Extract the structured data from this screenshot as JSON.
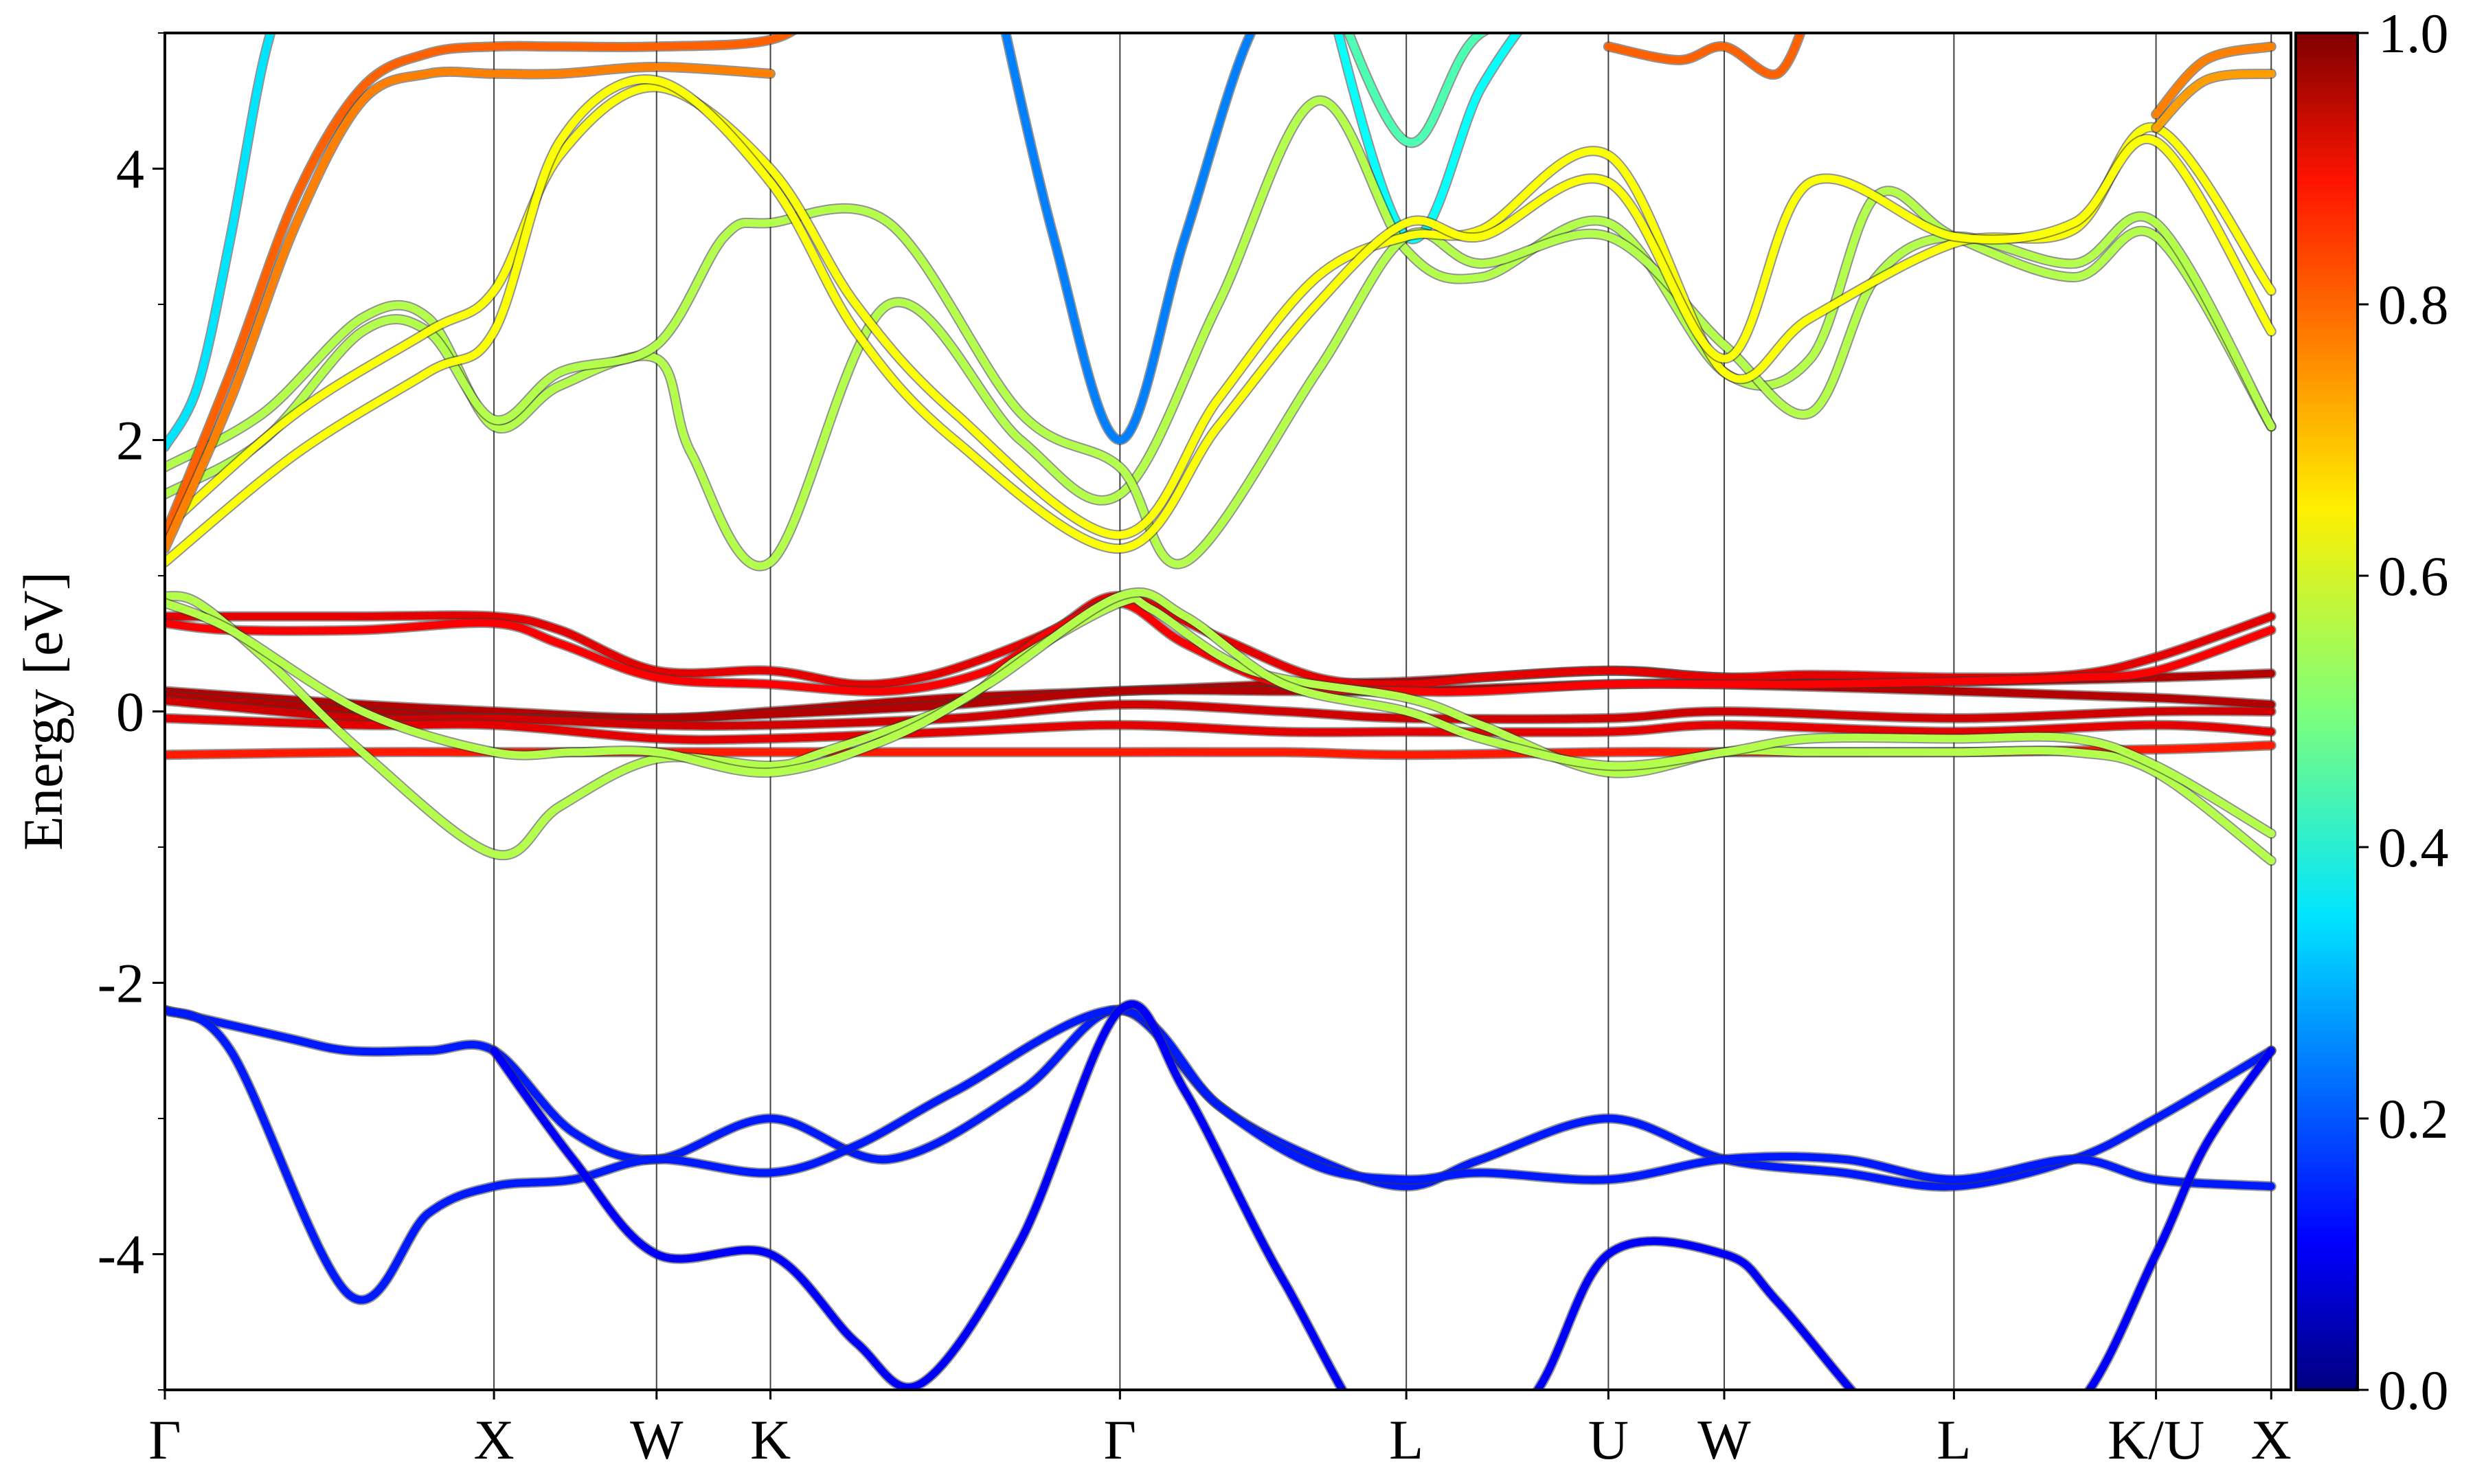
{
  "chart_data": {
    "type": "line",
    "title": "",
    "xlabel": "",
    "ylabel": "Energy [eV]",
    "ylim": [
      -5,
      5
    ],
    "yticks": [
      4,
      2,
      0,
      -2,
      -4
    ],
    "ytick_labels": [
      "4",
      "2",
      "0",
      "-2",
      "-4"
    ],
    "x_range": [
      0,
      3.23
    ],
    "high_symmetry_points": [
      {
        "label": "Γ",
        "x": 0.0
      },
      {
        "label": "X",
        "x": 0.5
      },
      {
        "label": "W",
        "x": 0.747
      },
      {
        "label": "K",
        "x": 0.92
      },
      {
        "label": "Γ",
        "x": 1.451
      },
      {
        "label": "L",
        "x": 1.886
      },
      {
        "label": "U",
        "x": 2.193
      },
      {
        "label": "W",
        "x": 2.369
      },
      {
        "label": "L",
        "x": 2.718
      },
      {
        "label": "K/U",
        "x": 3.025
      },
      {
        "label": "X",
        "x": 3.2
      }
    ],
    "colorbar": {
      "colormap": "jet",
      "range": [
        0.0,
        1.0
      ],
      "ticks": [
        "0.0",
        "0.2",
        "0.4",
        "0.6",
        "0.8",
        "1.0"
      ]
    },
    "series": [
      {
        "color_value": 0.15,
        "x": [
          0.0,
          0.18,
          0.28,
          0.4,
          0.5,
          0.62,
          0.747,
          0.92,
          1.1,
          1.3,
          1.451,
          1.6,
          1.75,
          1.886,
          2.0,
          2.193,
          2.369,
          2.55,
          2.718,
          2.9,
          3.025,
          3.2
        ],
        "y": [
          -2.2,
          -2.4,
          -2.5,
          -2.5,
          -2.5,
          -3.1,
          -3.3,
          -3.0,
          -3.3,
          -2.8,
          -2.2,
          -2.9,
          -3.3,
          -3.5,
          -3.3,
          -3.0,
          -3.3,
          -3.4,
          -3.5,
          -3.3,
          -3.0,
          -2.5
        ]
      },
      {
        "color_value": 0.15,
        "x": [
          0.0,
          0.1,
          0.28,
          0.4,
          0.5,
          0.62,
          0.747,
          0.92,
          1.05,
          1.2,
          1.451,
          1.6,
          1.75,
          1.886,
          2.0,
          2.193,
          2.369,
          2.55,
          2.718,
          2.9,
          3.025,
          3.2
        ],
        "y": [
          -2.2,
          -2.5,
          -4.3,
          -3.7,
          -3.5,
          -3.45,
          -3.3,
          -3.4,
          -3.2,
          -2.8,
          -2.2,
          -2.9,
          -3.35,
          -3.45,
          -3.4,
          -3.45,
          -3.3,
          -3.3,
          -3.45,
          -3.3,
          -3.45,
          -3.5
        ]
      },
      {
        "color_value": 0.12,
        "x": [
          0.5,
          0.62,
          0.747,
          0.92,
          1.05,
          1.15,
          1.3,
          1.451,
          1.55,
          1.7,
          1.886,
          2.07,
          2.193,
          2.369,
          2.45,
          2.6,
          2.718,
          2.9,
          3.025,
          3.1,
          3.2
        ],
        "y": [
          -2.5,
          -3.3,
          -4.0,
          -4.0,
          -4.65,
          -4.95,
          -3.9,
          -2.2,
          -2.8,
          -4.2,
          -5.6,
          -5.1,
          -4.0,
          -4.0,
          -4.35,
          -5.2,
          -5.6,
          -5.15,
          -4.0,
          -3.2,
          -2.5
        ]
      },
      {
        "color_value": 0.95,
        "x": [
          0.0,
          0.3,
          0.5,
          0.747,
          0.92,
          1.2,
          1.451,
          1.7,
          1.886,
          2.193,
          2.369,
          2.718,
          3.025,
          3.2
        ],
        "y": [
          0.15,
          0.05,
          0.0,
          -0.05,
          0.0,
          0.1,
          0.15,
          0.2,
          0.22,
          0.3,
          0.25,
          0.22,
          0.25,
          0.28
        ]
      },
      {
        "color_value": 0.95,
        "x": [
          0.0,
          0.3,
          0.5,
          0.747,
          0.92,
          1.2,
          1.451,
          1.7,
          1.886,
          2.193,
          2.369,
          2.718,
          3.025,
          3.2
        ],
        "y": [
          0.12,
          0.0,
          -0.05,
          -0.05,
          -0.02,
          0.05,
          0.15,
          0.15,
          0.15,
          0.2,
          0.2,
          0.15,
          0.1,
          0.05
        ]
      },
      {
        "color_value": 0.92,
        "x": [
          0.0,
          0.3,
          0.5,
          0.747,
          0.92,
          1.2,
          1.451,
          1.7,
          1.886,
          2.193,
          2.369,
          2.718,
          3.025,
          3.2
        ],
        "y": [
          0.08,
          -0.05,
          -0.05,
          -0.1,
          -0.1,
          -0.05,
          0.05,
          0.0,
          -0.05,
          -0.05,
          0.0,
          -0.05,
          0.0,
          0.0
        ]
      },
      {
        "color_value": 0.9,
        "x": [
          0.0,
          0.3,
          0.5,
          0.747,
          0.92,
          1.2,
          1.451,
          1.7,
          1.886,
          2.193,
          2.369,
          2.718,
          3.025,
          3.2
        ],
        "y": [
          -0.05,
          -0.1,
          -0.1,
          -0.2,
          -0.2,
          -0.15,
          -0.1,
          -0.15,
          -0.15,
          -0.15,
          -0.1,
          -0.15,
          -0.1,
          -0.15
        ]
      },
      {
        "color_value": 0.85,
        "x": [
          0.0,
          0.3,
          0.5,
          0.747,
          0.92,
          1.2,
          1.451,
          1.7,
          1.886,
          2.193,
          2.369,
          2.718,
          3.025,
          3.2
        ],
        "y": [
          -0.32,
          -0.3,
          -0.3,
          -0.3,
          -0.3,
          -0.3,
          -0.3,
          -0.3,
          -0.32,
          -0.3,
          -0.3,
          -0.3,
          -0.28,
          -0.25
        ]
      },
      {
        "color_value": 0.9,
        "x": [
          0.0,
          0.1,
          0.3,
          0.5,
          0.6,
          0.747,
          0.92,
          1.05,
          1.15,
          1.25,
          1.35,
          1.451,
          1.6,
          1.75,
          1.886,
          2.0,
          2.193,
          2.369,
          2.5,
          2.718,
          2.9,
          3.025,
          3.2
        ],
        "y": [
          0.7,
          0.7,
          0.7,
          0.7,
          0.6,
          0.3,
          0.3,
          0.2,
          0.25,
          0.4,
          0.6,
          0.85,
          0.55,
          0.25,
          0.2,
          0.25,
          0.3,
          0.25,
          0.27,
          0.25,
          0.27,
          0.4,
          0.7
        ]
      },
      {
        "color_value": 0.88,
        "x": [
          0.0,
          0.1,
          0.3,
          0.5,
          0.6,
          0.747,
          0.92,
          1.1,
          1.25,
          1.35,
          1.451,
          1.55,
          1.7,
          1.886,
          2.0,
          2.193,
          2.369,
          2.5,
          2.718,
          2.9,
          3.025,
          3.2
        ],
        "y": [
          0.65,
          0.6,
          0.6,
          0.65,
          0.5,
          0.25,
          0.2,
          0.15,
          0.3,
          0.6,
          0.8,
          0.5,
          0.2,
          0.15,
          0.15,
          0.2,
          0.2,
          0.2,
          0.22,
          0.25,
          0.3,
          0.6
        ]
      },
      {
        "color_value": 0.55,
        "x": [
          0.0,
          0.05,
          0.15,
          0.3,
          0.5,
          0.6,
          0.747,
          0.92,
          1.0,
          1.2,
          1.3,
          1.451,
          1.5,
          1.65,
          1.886,
          2.0,
          2.193,
          2.369,
          2.5,
          2.718,
          2.9,
          3.025,
          3.2
        ],
        "y": [
          0.85,
          0.8,
          0.4,
          -0.3,
          -1.05,
          -0.7,
          -0.35,
          -0.4,
          -0.3,
          0.05,
          0.4,
          0.8,
          0.75,
          0.3,
          0.1,
          -0.1,
          -0.45,
          -0.3,
          -0.3,
          -0.3,
          -0.3,
          -0.45,
          -1.1
        ]
      },
      {
        "color_value": 0.55,
        "x": [
          0.0,
          0.1,
          0.3,
          0.5,
          0.62,
          0.747,
          0.92,
          1.1,
          1.25,
          1.451,
          1.55,
          1.7,
          1.886,
          2.0,
          2.193,
          2.369,
          2.5,
          2.718,
          2.9,
          3.025,
          3.2
        ],
        "y": [
          0.8,
          0.6,
          0.0,
          -0.3,
          -0.3,
          -0.3,
          -0.45,
          -0.2,
          0.2,
          0.85,
          0.7,
          0.2,
          0.0,
          -0.2,
          -0.4,
          -0.3,
          -0.2,
          -0.2,
          -0.2,
          -0.4,
          -0.9
        ]
      },
      {
        "color_value": 0.35,
        "x": [
          0.0,
          0.05,
          0.1,
          0.15,
          0.2
        ],
        "y": [
          1.95,
          2.4,
          3.5,
          4.8,
          5.6
        ]
      },
      {
        "color_value": 0.25,
        "x": [
          1.25,
          1.35,
          1.451,
          1.55,
          1.65,
          1.75
        ],
        "y": [
          5.6,
          3.5,
          2.0,
          3.5,
          5.0,
          5.6
        ]
      },
      {
        "color_value": 0.38,
        "x": [
          1.75,
          1.886,
          2.0,
          2.1,
          2.15
        ],
        "y": [
          5.6,
          3.5,
          4.6,
          5.3,
          5.6
        ]
      },
      {
        "color_value": 0.55,
        "x": [
          0.0,
          0.15,
          0.3,
          0.4,
          0.5,
          0.6,
          0.747,
          0.8,
          0.92,
          1.1,
          1.3,
          1.451,
          1.6,
          1.75,
          1.886,
          2.0,
          2.193,
          2.369,
          2.5,
          2.6,
          2.718,
          2.9,
          3.025,
          3.2
        ],
        "y": [
          1.8,
          2.2,
          2.9,
          2.9,
          2.1,
          2.4,
          2.6,
          1.9,
          1.1,
          3.0,
          2.0,
          1.6,
          3.0,
          4.5,
          3.4,
          3.2,
          3.6,
          2.5,
          2.6,
          3.8,
          3.5,
          3.2,
          3.5,
          2.1
        ]
      },
      {
        "color_value": 0.55,
        "x": [
          0.0,
          0.15,
          0.3,
          0.4,
          0.5,
          0.6,
          0.747,
          0.85,
          0.92,
          1.1,
          1.3,
          1.451,
          1.55,
          1.75,
          1.886,
          2.0,
          2.193,
          2.369,
          2.5,
          2.6,
          2.718,
          2.9,
          3.025,
          3.2
        ],
        "y": [
          1.6,
          2.0,
          2.8,
          2.8,
          2.15,
          2.5,
          2.7,
          3.5,
          3.6,
          3.6,
          2.2,
          1.8,
          1.1,
          2.5,
          3.5,
          3.3,
          3.5,
          2.7,
          2.2,
          3.2,
          3.5,
          3.3,
          3.6,
          2.1
        ]
      },
      {
        "color_value": 0.62,
        "x": [
          0.0,
          0.2,
          0.4,
          0.5,
          0.6,
          0.747,
          0.92,
          1.05,
          1.2,
          1.451,
          1.6,
          1.75,
          1.886,
          2.0,
          2.193,
          2.369,
          2.5,
          2.718,
          2.9,
          3.025,
          3.2
        ],
        "y": [
          1.35,
          2.2,
          2.8,
          3.1,
          4.1,
          4.6,
          4.0,
          3.0,
          2.2,
          1.3,
          2.3,
          3.2,
          3.5,
          3.55,
          4.1,
          2.5,
          2.9,
          3.45,
          3.55,
          4.3,
          3.1
        ]
      },
      {
        "color_value": 0.62,
        "x": [
          0.0,
          0.2,
          0.4,
          0.5,
          0.6,
          0.747,
          0.92,
          1.05,
          1.2,
          1.451,
          1.6,
          1.75,
          1.886,
          2.0,
          2.193,
          2.369,
          2.5,
          2.718,
          2.9,
          3.025,
          3.2
        ],
        "y": [
          1.1,
          1.9,
          2.5,
          2.8,
          4.2,
          4.65,
          3.9,
          2.8,
          2.0,
          1.2,
          2.1,
          3.0,
          3.6,
          3.5,
          3.9,
          2.6,
          3.9,
          3.5,
          3.6,
          4.2,
          2.8
        ]
      },
      {
        "color_value": 0.78,
        "x": [
          0.0,
          0.1,
          0.2,
          0.3,
          0.4,
          0.5,
          0.6,
          0.747,
          0.92,
          1.0,
          1.1
        ],
        "y": [
          1.3,
          2.5,
          3.8,
          4.6,
          4.85,
          4.9,
          4.9,
          4.9,
          4.95,
          5.2,
          5.6
        ]
      },
      {
        "color_value": 0.75,
        "x": [
          0.0,
          0.1,
          0.2,
          0.3,
          0.4,
          0.5,
          0.6,
          0.747,
          0.92
        ],
        "y": [
          1.2,
          2.3,
          3.6,
          4.5,
          4.7,
          4.7,
          4.7,
          4.75,
          4.7
        ]
      },
      {
        "color_value": 0.78,
        "x": [
          2.193,
          2.3,
          2.369,
          2.45,
          2.5
        ],
        "y": [
          4.9,
          4.8,
          4.9,
          4.7,
          5.2
        ]
      },
      {
        "color_value": 0.75,
        "x": [
          3.025,
          3.1,
          3.2
        ],
        "y": [
          4.4,
          4.8,
          4.9
        ]
      },
      {
        "color_value": 0.72,
        "x": [
          3.025,
          3.1,
          3.2
        ],
        "y": [
          4.3,
          4.65,
          4.7
        ]
      },
      {
        "color_value": 0.45,
        "x": [
          1.75,
          1.886,
          2.0,
          2.2,
          2.4
        ],
        "y": [
          5.6,
          4.2,
          5.0,
          5.2,
          5.6
        ]
      }
    ]
  }
}
